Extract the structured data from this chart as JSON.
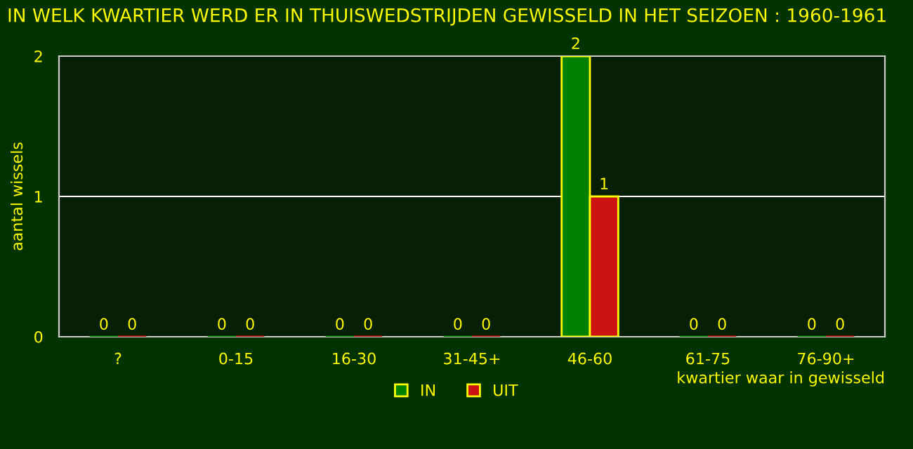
{
  "chart_data": {
    "type": "bar",
    "title": "IN WELK KWARTIER WERD ER IN THUISWEDSTRIJDEN GEWISSELD IN HET SEIZOEN : 1960-1961",
    "xlabel": "kwartier waar in gewisseld",
    "ylabel": "aantal wissels",
    "categories": [
      "?",
      "0-15",
      "16-30",
      "31-45+",
      "46-60",
      "61-75",
      "76-90+"
    ],
    "series": [
      {
        "name": "IN",
        "color": "#008000",
        "values": [
          0,
          0,
          0,
          0,
          2,
          0,
          0
        ]
      },
      {
        "name": "UIT",
        "color": "#cc1111",
        "values": [
          0,
          0,
          0,
          0,
          1,
          0,
          0
        ]
      }
    ],
    "ylim": [
      0,
      2
    ],
    "yticks": [
      0,
      1,
      2
    ],
    "grid": "y",
    "legend": "bottom",
    "data_labels": true
  }
}
